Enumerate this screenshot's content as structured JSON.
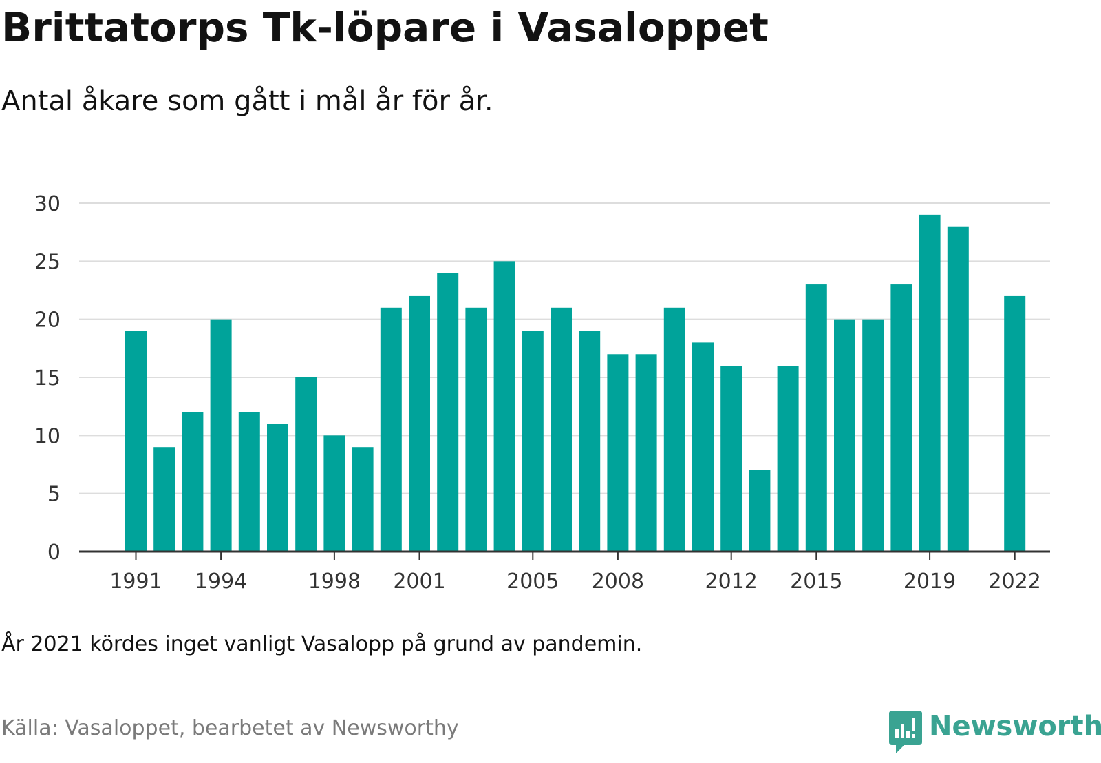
{
  "title": "Brittatorps Tk-löpare i Vasaloppet",
  "subtitle": "Antal åkare som gått i mål år för år.",
  "note": "År 2021 kördes inget vanligt Vasalopp på grund av pandemin.",
  "source": "Källa: Vasaloppet, bearbetet av Newsworthy",
  "brand": {
    "name": "Newsworthy",
    "icon": "newsworthy-logo-icon",
    "color": "#3aa392"
  },
  "colors": {
    "bar": "#00a39a",
    "grid": "#dddddd",
    "axis": "#333333"
  },
  "chart_data": {
    "type": "bar",
    "title": "Brittatorps Tk-löpare i Vasaloppet",
    "subtitle": "Antal åkare som gått i mål år för år.",
    "xlabel": "",
    "ylabel": "",
    "ylim": [
      0,
      30
    ],
    "yticks": [
      0,
      5,
      10,
      15,
      20,
      25,
      30
    ],
    "xticks": [
      1991,
      1994,
      1998,
      2001,
      2005,
      2008,
      2012,
      2015,
      2019,
      2022
    ],
    "grid": true,
    "legend": "none",
    "categories": [
      1991,
      1992,
      1993,
      1994,
      1995,
      1996,
      1997,
      1998,
      1999,
      2000,
      2001,
      2002,
      2003,
      2004,
      2005,
      2006,
      2007,
      2008,
      2009,
      2010,
      2011,
      2012,
      2013,
      2014,
      2015,
      2016,
      2017,
      2018,
      2019,
      2020,
      2021,
      2022
    ],
    "values": [
      19,
      9,
      12,
      20,
      12,
      11,
      15,
      10,
      9,
      21,
      22,
      24,
      21,
      25,
      19,
      21,
      19,
      17,
      17,
      21,
      18,
      16,
      7,
      16,
      23,
      20,
      20,
      23,
      29,
      28,
      null,
      22
    ]
  }
}
